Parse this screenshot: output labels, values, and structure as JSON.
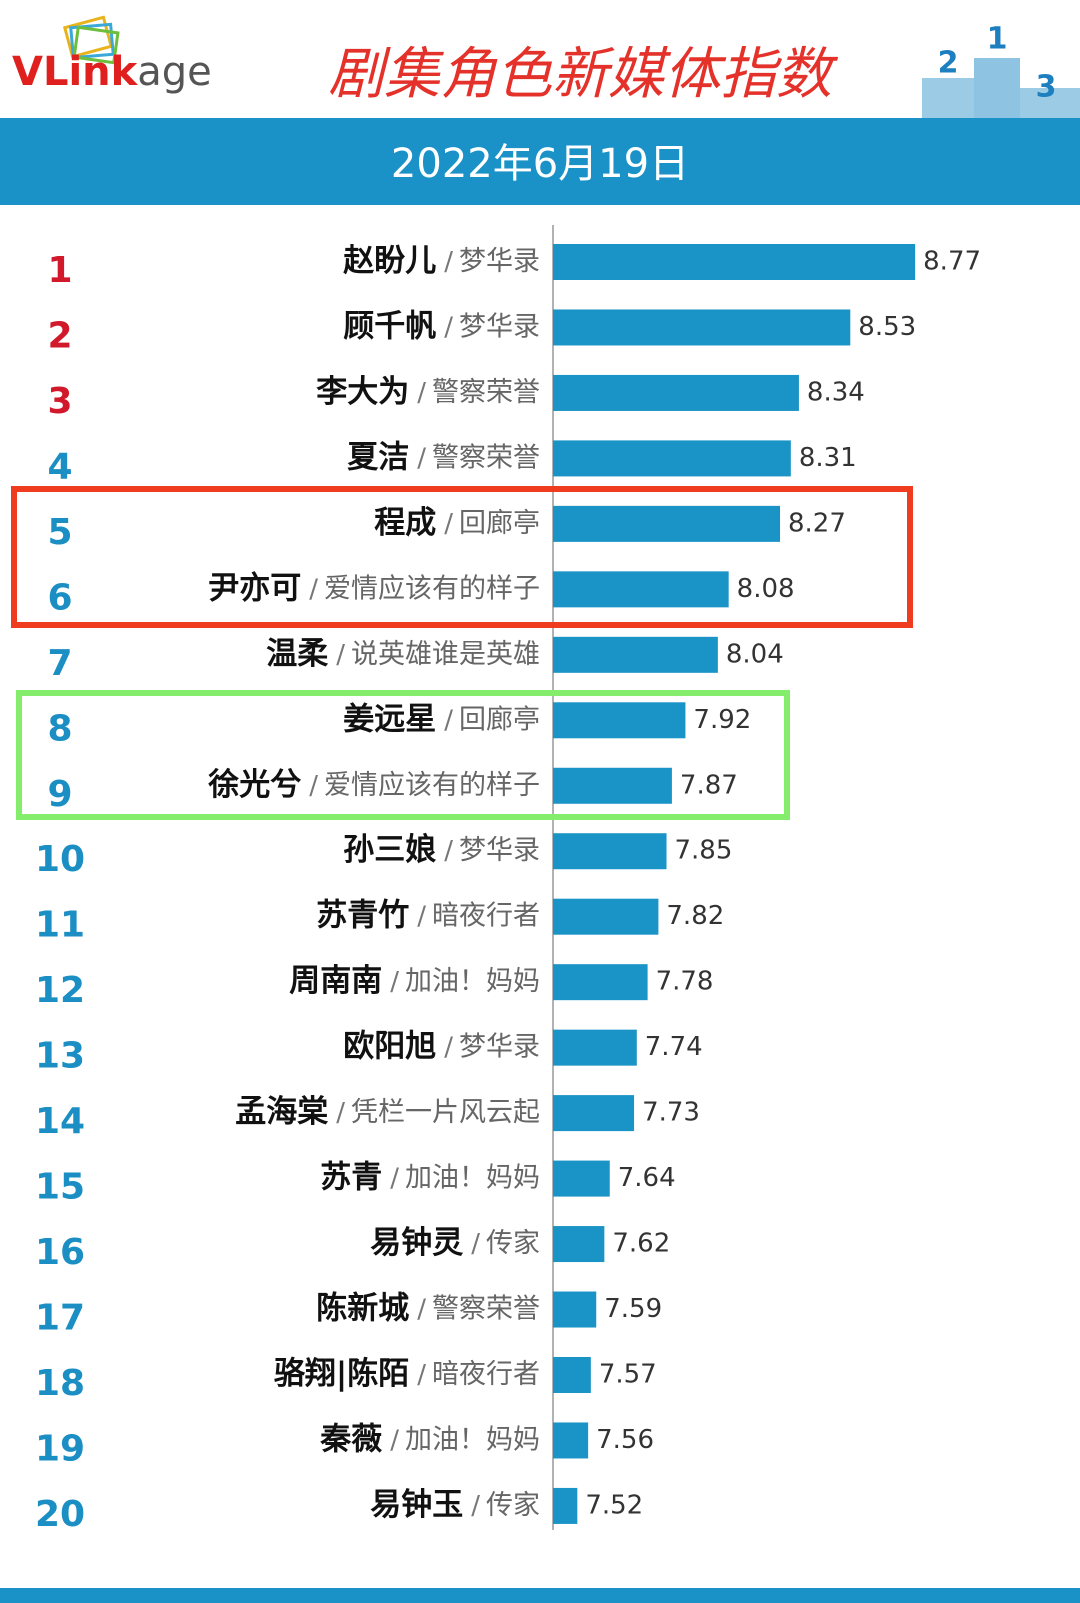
{
  "chart_data": {
    "type": "bar",
    "orientation": "horizontal",
    "logo": {
      "first": "VLink",
      "second": "age"
    },
    "title": "剧集角色新媒体指数",
    "subtitle": "2022年6月19日",
    "podium_labels": [
      "2",
      "1",
      "3"
    ],
    "separator": "/",
    "ranks": [
      1,
      2,
      3,
      4,
      5,
      6,
      7,
      8,
      9,
      10,
      11,
      12,
      13,
      14,
      15,
      16,
      17,
      18,
      19,
      20
    ],
    "rank_colors": [
      "#d2192b",
      "#d2192b",
      "#d2192b",
      "#1b8ec3",
      "#1b8ec3",
      "#1b8ec3",
      "#1b8ec3",
      "#1b8ec3",
      "#1b8ec3",
      "#1b8ec3",
      "#1b8ec3",
      "#1b8ec3",
      "#1b8ec3",
      "#1b8ec3",
      "#1b8ec3",
      "#1b8ec3",
      "#1b8ec3",
      "#1b8ec3",
      "#1b8ec3",
      "#1b8ec3"
    ],
    "categories": [
      "赵盼儿",
      "顾千帆",
      "李大为",
      "夏洁",
      "程成",
      "尹亦可",
      "温柔",
      "姜远星",
      "徐光兮",
      "孙三娘",
      "苏青竹",
      "周南南",
      "欧阳旭",
      "孟海棠",
      "苏青",
      "易钟灵",
      "陈新城",
      "骆翔|陈陌",
      "秦薇",
      "易钟玉"
    ],
    "dramas": [
      "梦华录",
      "梦华录",
      "警察荣誉",
      "警察荣誉",
      "回廊亭",
      "爱情应该有的样子",
      "说英雄谁是英雄",
      "回廊亭",
      "爱情应该有的样子",
      "梦华录",
      "暗夜行者",
      "加油！妈妈",
      "梦华录",
      "凭栏一片风云起",
      "加油！妈妈",
      "传家",
      "警察荣誉",
      "暗夜行者",
      "加油！妈妈",
      "传家"
    ],
    "values": [
      8.77,
      8.53,
      8.34,
      8.31,
      8.27,
      8.08,
      8.04,
      7.92,
      7.87,
      7.85,
      7.82,
      7.78,
      7.74,
      7.73,
      7.64,
      7.62,
      7.59,
      7.57,
      7.56,
      7.52
    ],
    "color": "#1a93c6",
    "xlim": [
      7.43,
      9.38
    ]
  }
}
